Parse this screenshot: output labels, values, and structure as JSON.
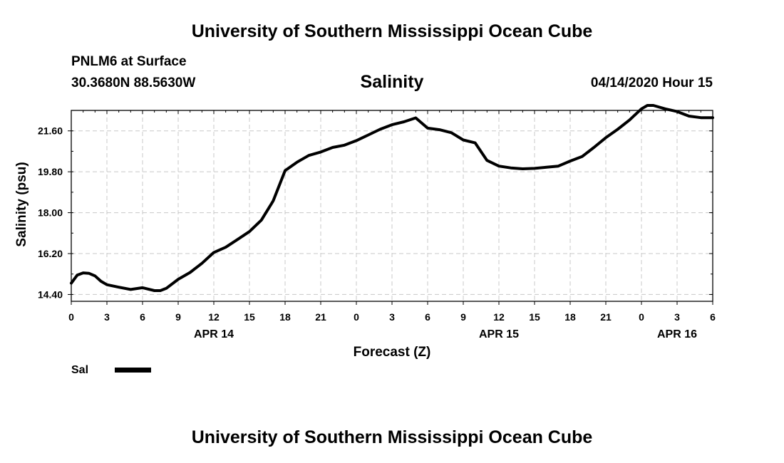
{
  "header": {
    "title": "University of Southern Mississippi Ocean Cube",
    "station": "PNLM6 at Surface",
    "coordinates": "30.3680N 88.5630W",
    "variable": "Salinity",
    "datetime": "04/14/2020 Hour 15"
  },
  "footer": {
    "title": "University of Southern Mississippi Ocean Cube"
  },
  "legend": {
    "label": "Sal",
    "color": "#000000"
  },
  "chart_data": {
    "type": "line",
    "title": "Salinity",
    "xlabel": "Forecast (Z)",
    "ylabel": "Salinity (psu)",
    "ylim": [
      14.1,
      22.5
    ],
    "xlim": [
      0,
      54
    ],
    "grid": true,
    "legend": "bottom-left",
    "yticks": [
      "14.40",
      "16.20",
      "18.00",
      "19.80",
      "21.60"
    ],
    "xticks": [
      {
        "x": 0,
        "label": "0"
      },
      {
        "x": 3,
        "label": "3"
      },
      {
        "x": 6,
        "label": "6"
      },
      {
        "x": 9,
        "label": "9"
      },
      {
        "x": 12,
        "label": "12"
      },
      {
        "x": 15,
        "label": "15"
      },
      {
        "x": 18,
        "label": "18"
      },
      {
        "x": 21,
        "label": "21"
      },
      {
        "x": 24,
        "label": "0"
      },
      {
        "x": 27,
        "label": "3"
      },
      {
        "x": 30,
        "label": "6"
      },
      {
        "x": 33,
        "label": "9"
      },
      {
        "x": 36,
        "label": "12"
      },
      {
        "x": 39,
        "label": "15"
      },
      {
        "x": 42,
        "label": "18"
      },
      {
        "x": 45,
        "label": "21"
      },
      {
        "x": 48,
        "label": "0"
      },
      {
        "x": 51,
        "label": "3"
      },
      {
        "x": 54,
        "label": "6"
      }
    ],
    "day_labels": [
      {
        "x": 12,
        "label": "APR 14"
      },
      {
        "x": 36,
        "label": "APR 15"
      },
      {
        "x": 51,
        "label": "APR 16"
      }
    ],
    "series": [
      {
        "name": "Sal",
        "x": [
          0,
          0.5,
          1,
          1.5,
          2,
          2.5,
          3,
          4,
          5,
          6,
          7,
          7.5,
          8,
          9,
          10,
          11,
          12,
          13,
          14,
          15,
          16,
          17,
          18,
          19,
          20,
          21,
          22,
          23,
          24,
          25,
          26,
          27,
          28,
          29,
          30,
          31,
          32,
          33,
          34,
          35,
          36,
          37,
          38,
          39,
          40,
          41,
          42,
          43,
          44,
          45,
          46,
          47,
          48,
          48.5,
          49,
          50,
          51,
          52,
          53,
          54
        ],
        "y": [
          14.9,
          15.25,
          15.35,
          15.33,
          15.22,
          14.98,
          14.83,
          14.72,
          14.62,
          14.7,
          14.57,
          14.57,
          14.67,
          15.07,
          15.37,
          15.77,
          16.25,
          16.48,
          16.82,
          17.17,
          17.67,
          18.52,
          19.85,
          20.22,
          20.52,
          20.67,
          20.87,
          20.97,
          21.17,
          21.42,
          21.67,
          21.87,
          22.0,
          22.17,
          21.72,
          21.65,
          21.52,
          21.2,
          21.07,
          20.3,
          20.05,
          19.97,
          19.93,
          19.95,
          20.0,
          20.05,
          20.27,
          20.47,
          20.87,
          21.3,
          21.67,
          22.08,
          22.57,
          22.72,
          22.72,
          22.57,
          22.45,
          22.25,
          22.18,
          22.18
        ]
      }
    ]
  }
}
